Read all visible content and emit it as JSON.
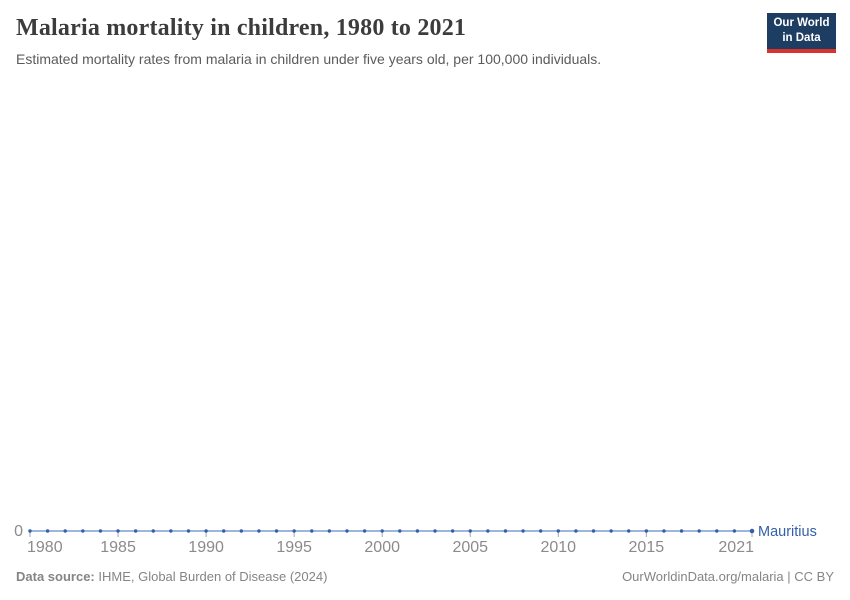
{
  "header": {
    "title": "Malaria mortality in children, 1980 to 2021",
    "subtitle": "Estimated mortality rates from malaria in children under five years old, per 100,000 individuals.",
    "logo": {
      "line1": "Our World",
      "line2": "in Data",
      "bg_color": "#1d3d63",
      "accent_color": "#d7352c"
    }
  },
  "chart_data": {
    "type": "line",
    "title": "Malaria mortality in children, 1980 to 2021",
    "xlabel": "",
    "ylabel": "",
    "xlim": [
      1980,
      2021
    ],
    "ylim": [
      0,
      null
    ],
    "grid": false,
    "legend_position": "end-of-line",
    "x_ticks": [
      1980,
      1985,
      1990,
      1995,
      2000,
      2005,
      2010,
      2015,
      2021
    ],
    "y_ticks": [
      0
    ],
    "tick_color": "#a5a5a5",
    "series": [
      {
        "name": "Mauritius",
        "color": "#3360a9",
        "line_color": "#7f9dd1",
        "x": [
          1980,
          1981,
          1982,
          1983,
          1984,
          1985,
          1986,
          1987,
          1988,
          1989,
          1990,
          1991,
          1992,
          1993,
          1994,
          1995,
          1996,
          1997,
          1998,
          1999,
          2000,
          2001,
          2002,
          2003,
          2004,
          2005,
          2006,
          2007,
          2008,
          2009,
          2010,
          2011,
          2012,
          2013,
          2014,
          2015,
          2016,
          2017,
          2018,
          2019,
          2020,
          2021
        ],
        "values": [
          0,
          0,
          0,
          0,
          0,
          0,
          0,
          0,
          0,
          0,
          0,
          0,
          0,
          0,
          0,
          0,
          0,
          0,
          0,
          0,
          0,
          0,
          0,
          0,
          0,
          0,
          0,
          0,
          0,
          0,
          0,
          0,
          0,
          0,
          0,
          0,
          0,
          0,
          0,
          0,
          0,
          0
        ]
      }
    ]
  },
  "footer": {
    "data_source_label": "Data source:",
    "data_source_value": "IHME, Global Burden of Disease (2024)",
    "attribution": "OurWorldinData.org/malaria | CC BY"
  }
}
